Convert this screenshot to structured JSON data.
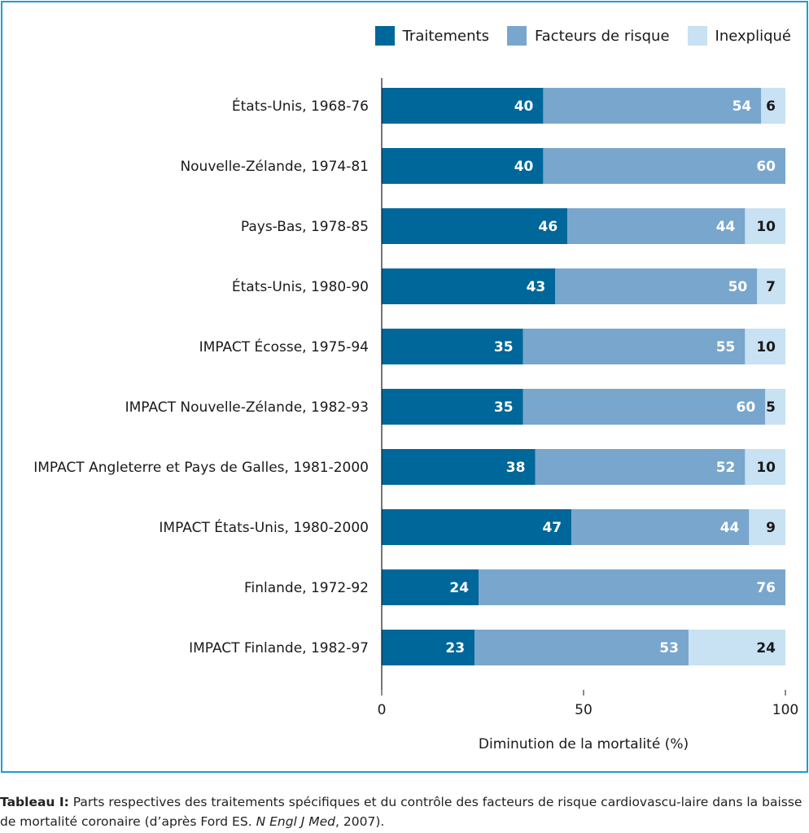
{
  "chart_data": {
    "type": "bar",
    "orientation": "horizontal",
    "stacked": true,
    "categories": [
      "États-Unis, 1968-76",
      "Nouvelle-Zélande, 1974-81",
      "Pays-Bas, 1978-85",
      "États-Unis, 1980-90",
      "IMPACT Écosse, 1975-94",
      "IMPACT Nouvelle-Zélande, 1982-93",
      "IMPACT Angleterre et Pays de Galles, 1981-2000",
      "IMPACT États-Unis, 1980-2000",
      "Finlande, 1972-92",
      "IMPACT Finlande, 1982-97"
    ],
    "series": [
      {
        "name": "Traitements",
        "color": "#00679a",
        "label_color": "#ffffff",
        "values": [
          40,
          40,
          46,
          43,
          35,
          35,
          38,
          47,
          24,
          23
        ]
      },
      {
        "name": "Facteurs de risque",
        "color": "#79a6cc",
        "label_color": "#ffffff",
        "values": [
          54,
          60,
          44,
          50,
          55,
          60,
          52,
          44,
          76,
          53
        ]
      },
      {
        "name": "Inexpliqué",
        "color": "#c8e1f3",
        "label_color": "#1a1a1a",
        "values": [
          6,
          null,
          10,
          7,
          10,
          5,
          10,
          9,
          null,
          24
        ]
      }
    ],
    "bar_labels": [
      [
        "40",
        "54",
        "6"
      ],
      [
        "40",
        "60",
        ""
      ],
      [
        "46",
        "44",
        "10"
      ],
      [
        "43",
        "50",
        "7"
      ],
      [
        "35",
        "55",
        "10"
      ],
      [
        "35",
        "60",
        "5"
      ],
      [
        "38",
        "52",
        "10"
      ],
      [
        "47",
        "44",
        "9"
      ],
      [
        "24",
        "76",
        ""
      ],
      [
        "23",
        "53",
        "24"
      ]
    ],
    "xlabel": "Diminution de la mortalité (%)",
    "ylabel": "",
    "xlim": [
      0,
      100
    ],
    "xticks": [
      0,
      50,
      100
    ],
    "legend_position": "top-right",
    "grid": false
  },
  "caption": {
    "prefix": "Tableau I:",
    "text1": " Parts respectives des traitements spécifiques et du contrôle des facteurs de risque cardiovascu-laire dans la baisse de mortalité coronaire (d’après Ford ES. ",
    "journal": "N Engl J Med",
    "text2": ", 2007)."
  }
}
